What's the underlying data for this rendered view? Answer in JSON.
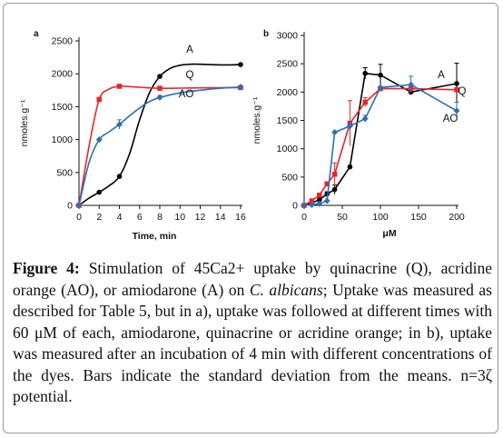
{
  "chart_data": [
    {
      "type": "line",
      "panel_label": "a",
      "xlabel": "Time, min",
      "ylabel": "nmoles.g⁻¹",
      "xlim": [
        0,
        16
      ],
      "ylim": [
        0,
        2500
      ],
      "x_ticks": [
        0,
        2,
        4,
        6,
        8,
        10,
        12,
        14,
        16
      ],
      "y_ticks": [
        0,
        500,
        1000,
        1500,
        2000,
        2500
      ],
      "series": [
        {
          "name": "A",
          "color": "#000000",
          "marker": "circle",
          "x": [
            0,
            2,
            4,
            8,
            16
          ],
          "y": [
            0,
            200,
            440,
            1960,
            2140
          ],
          "err": [
            0,
            0,
            0,
            0,
            0
          ],
          "curve_x": [
            0,
            1,
            2,
            3,
            4,
            5,
            6,
            7,
            8,
            9,
            10,
            11,
            12,
            13,
            14,
            15,
            16
          ],
          "curve_y": [
            0,
            110,
            200,
            300,
            440,
            780,
            1300,
            1720,
            1960,
            2080,
            2130,
            2145,
            2145,
            2140,
            2135,
            2135,
            2140
          ]
        },
        {
          "name": "Q",
          "color": "#e8262a",
          "marker": "square",
          "x": [
            0,
            2,
            4,
            8,
            16
          ],
          "y": [
            0,
            1610,
            1810,
            1780,
            1790
          ],
          "err": [
            0,
            0,
            0,
            0,
            0
          ],
          "curve_x": [
            0,
            1,
            2,
            3,
            4,
            5,
            6,
            8,
            10,
            12,
            14,
            16
          ],
          "curve_y": [
            0,
            900,
            1610,
            1770,
            1810,
            1805,
            1795,
            1780,
            1782,
            1786,
            1788,
            1790
          ]
        },
        {
          "name": "AO",
          "color": "#2e6fb5",
          "marker": "diamond",
          "x": [
            0,
            2,
            4,
            8,
            16
          ],
          "y": [
            0,
            1000,
            1230,
            1640,
            1800
          ],
          "err": [
            0,
            0,
            70,
            30,
            0
          ],
          "curve_x": [
            0,
            1,
            2,
            3,
            4,
            5,
            6,
            7,
            8,
            10,
            12,
            14,
            16
          ],
          "curve_y": [
            0,
            650,
            1000,
            1120,
            1230,
            1360,
            1480,
            1580,
            1640,
            1710,
            1750,
            1780,
            1800
          ]
        }
      ],
      "annotations": [
        "A",
        "Q",
        "AO"
      ]
    },
    {
      "type": "line",
      "panel_label": "b",
      "xlabel": "μM",
      "ylabel": "nmoles.g⁻¹",
      "xlim": [
        0,
        200
      ],
      "ylim": [
        0,
        3000
      ],
      "x_ticks": [
        0,
        50,
        100,
        150,
        200
      ],
      "y_ticks": [
        0,
        500,
        1000,
        1500,
        2000,
        2500,
        3000
      ],
      "series": [
        {
          "name": "A",
          "color": "#000000",
          "marker": "circle",
          "x": [
            0,
            10,
            20,
            30,
            40,
            60,
            80,
            100,
            140,
            200
          ],
          "y": [
            0,
            40,
            100,
            200,
            280,
            680,
            2330,
            2300,
            2000,
            2150
          ],
          "err": [
            0,
            0,
            0,
            40,
            80,
            0,
            100,
            190,
            0,
            360
          ]
        },
        {
          "name": "Q",
          "color": "#e8262a",
          "marker": "square",
          "x": [
            0,
            10,
            20,
            30,
            40,
            60,
            80,
            100,
            140,
            200
          ],
          "y": [
            0,
            80,
            180,
            380,
            550,
            1450,
            1820,
            2060,
            2060,
            2040
          ],
          "err": [
            0,
            0,
            0,
            0,
            200,
            400,
            80,
            40,
            0,
            0
          ]
        },
        {
          "name": "AO",
          "color": "#2e6fb5",
          "marker": "diamond",
          "x": [
            0,
            10,
            20,
            30,
            40,
            60,
            80,
            100,
            140,
            200
          ],
          "y": [
            0,
            10,
            30,
            80,
            1290,
            1400,
            1530,
            2080,
            2130,
            1670
          ],
          "err": [
            0,
            0,
            0,
            0,
            0,
            80,
            60,
            0,
            150,
            150
          ]
        }
      ],
      "annotations": [
        "A",
        "Q",
        "AO"
      ]
    }
  ],
  "caption": {
    "label": "Figure 4:",
    "text": " Stimulation of 45Ca2+ uptake by quinacrine (Q), acridine orange (AO), or amiodarone (A) on ",
    "species": "C. albicans",
    "text2": "; Uptake was measured as described for Table 5, but in a), uptake was followed at different times with 60 μM of each, amiodarone, quinacrine or acridine orange; in b), uptake was measured after an incubation of 4 min with different concentrations of the dyes. Bars indicate the standard deviation from the means. n=3ζ potential."
  }
}
